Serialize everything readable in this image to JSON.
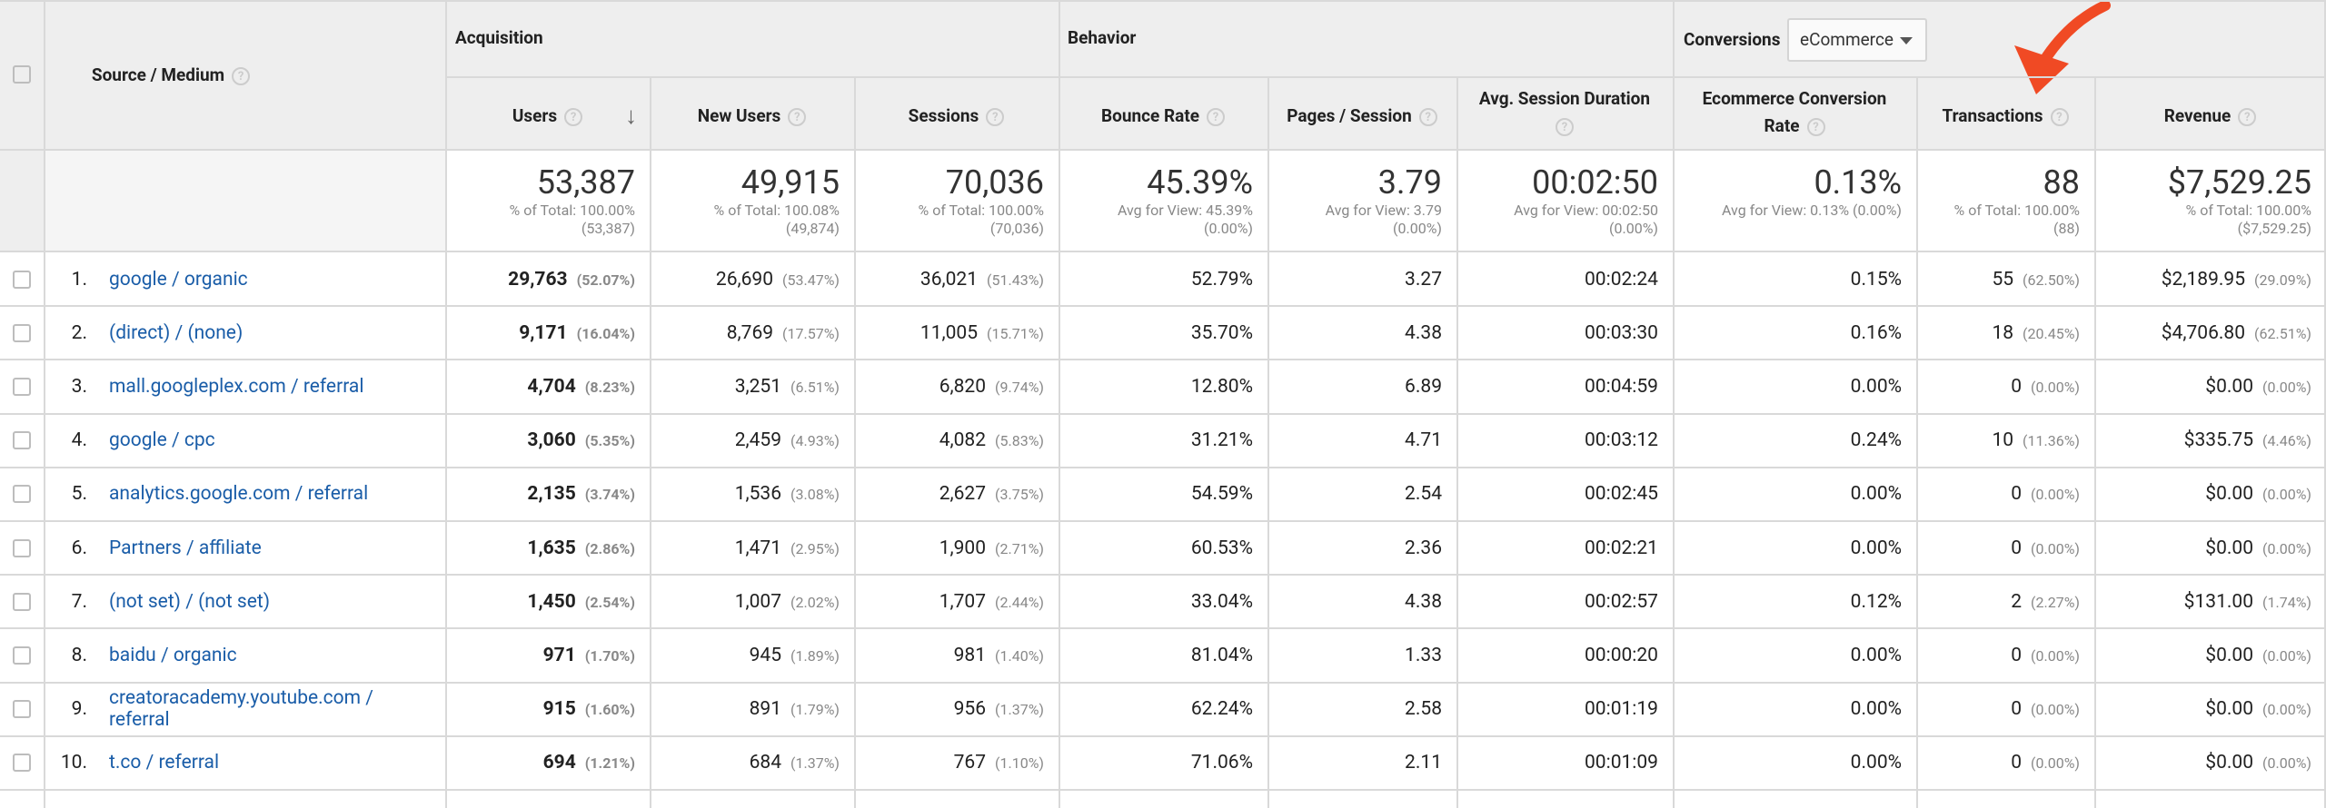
{
  "groups": {
    "acquisition": "Acquisition",
    "behavior": "Behavior",
    "conversions": "Conversions",
    "conversions_select": "eCommerce"
  },
  "columns": {
    "source_medium": "Source / Medium",
    "users": "Users",
    "new_users": "New Users",
    "sessions": "Sessions",
    "bounce_rate": "Bounce Rate",
    "pages_session": "Pages / Session",
    "avg_session_duration": "Avg. Session Duration",
    "ecom_conv_rate_line1": "Ecommerce Conversion",
    "ecom_conv_rate_line2": "Rate",
    "transactions": "Transactions",
    "revenue": "Revenue"
  },
  "totals": {
    "users": {
      "value": "53,387",
      "sub1": "% of Total: 100.00%",
      "sub2": "(53,387)"
    },
    "new_users": {
      "value": "49,915",
      "sub1": "% of Total: 100.08%",
      "sub2": "(49,874)"
    },
    "sessions": {
      "value": "70,036",
      "sub1": "% of Total: 100.00%",
      "sub2": "(70,036)"
    },
    "bounce_rate": {
      "value": "45.39%",
      "sub1": "Avg for View: 45.39%",
      "sub2": "(0.00%)"
    },
    "pages_session": {
      "value": "3.79",
      "sub1": "Avg for View: 3.79",
      "sub2": "(0.00%)"
    },
    "avg_session_duration": {
      "value": "00:02:50",
      "sub1": "Avg for View: 00:02:50",
      "sub2": "(0.00%)"
    },
    "ecom_conv_rate": {
      "value": "0.13%",
      "sub1": "Avg for View: 0.13% (0.00%)",
      "sub2": ""
    },
    "transactions": {
      "value": "88",
      "sub1": "% of Total: 100.00%",
      "sub2": "(88)"
    },
    "revenue": {
      "value": "$7,529.25",
      "sub1": "% of Total: 100.00%",
      "sub2": "($7,529.25)"
    }
  },
  "rows": [
    {
      "idx": "1.",
      "source": "google / organic",
      "users": "29,763",
      "users_pct": "(52.07%)",
      "new_users": "26,690",
      "new_users_pct": "(53.47%)",
      "sessions": "36,021",
      "sessions_pct": "(51.43%)",
      "bounce": "52.79%",
      "pages": "3.27",
      "duration": "00:02:24",
      "conv": "0.15%",
      "trans": "55",
      "trans_pct": "(62.50%)",
      "revenue": "$2,189.95",
      "revenue_pct": "(29.09%)"
    },
    {
      "idx": "2.",
      "source": "(direct) / (none)",
      "users": "9,171",
      "users_pct": "(16.04%)",
      "new_users": "8,769",
      "new_users_pct": "(17.57%)",
      "sessions": "11,005",
      "sessions_pct": "(15.71%)",
      "bounce": "35.70%",
      "pages": "4.38",
      "duration": "00:03:30",
      "conv": "0.16%",
      "trans": "18",
      "trans_pct": "(20.45%)",
      "revenue": "$4,706.80",
      "revenue_pct": "(62.51%)"
    },
    {
      "idx": "3.",
      "source": "mall.googleplex.com / referral",
      "users": "4,704",
      "users_pct": "(8.23%)",
      "new_users": "3,251",
      "new_users_pct": "(6.51%)",
      "sessions": "6,820",
      "sessions_pct": "(9.74%)",
      "bounce": "12.80%",
      "pages": "6.89",
      "duration": "00:04:59",
      "conv": "0.00%",
      "trans": "0",
      "trans_pct": "(0.00%)",
      "revenue": "$0.00",
      "revenue_pct": "(0.00%)"
    },
    {
      "idx": "4.",
      "source": "google / cpc",
      "users": "3,060",
      "users_pct": "(5.35%)",
      "new_users": "2,459",
      "new_users_pct": "(4.93%)",
      "sessions": "4,082",
      "sessions_pct": "(5.83%)",
      "bounce": "31.21%",
      "pages": "4.71",
      "duration": "00:03:12",
      "conv": "0.24%",
      "trans": "10",
      "trans_pct": "(11.36%)",
      "revenue": "$335.75",
      "revenue_pct": "(4.46%)"
    },
    {
      "idx": "5.",
      "source": "analytics.google.com / referral",
      "users": "2,135",
      "users_pct": "(3.74%)",
      "new_users": "1,536",
      "new_users_pct": "(3.08%)",
      "sessions": "2,627",
      "sessions_pct": "(3.75%)",
      "bounce": "54.59%",
      "pages": "2.54",
      "duration": "00:02:45",
      "conv": "0.00%",
      "trans": "0",
      "trans_pct": "(0.00%)",
      "revenue": "$0.00",
      "revenue_pct": "(0.00%)"
    },
    {
      "idx": "6.",
      "source": "Partners / affiliate",
      "users": "1,635",
      "users_pct": "(2.86%)",
      "new_users": "1,471",
      "new_users_pct": "(2.95%)",
      "sessions": "1,900",
      "sessions_pct": "(2.71%)",
      "bounce": "60.53%",
      "pages": "2.36",
      "duration": "00:02:21",
      "conv": "0.00%",
      "trans": "0",
      "trans_pct": "(0.00%)",
      "revenue": "$0.00",
      "revenue_pct": "(0.00%)"
    },
    {
      "idx": "7.",
      "source": "(not set) / (not set)",
      "users": "1,450",
      "users_pct": "(2.54%)",
      "new_users": "1,007",
      "new_users_pct": "(2.02%)",
      "sessions": "1,707",
      "sessions_pct": "(2.44%)",
      "bounce": "33.04%",
      "pages": "4.38",
      "duration": "00:02:57",
      "conv": "0.12%",
      "trans": "2",
      "trans_pct": "(2.27%)",
      "revenue": "$131.00",
      "revenue_pct": "(1.74%)"
    },
    {
      "idx": "8.",
      "source": "baidu / organic",
      "users": "971",
      "users_pct": "(1.70%)",
      "new_users": "945",
      "new_users_pct": "(1.89%)",
      "sessions": "981",
      "sessions_pct": "(1.40%)",
      "bounce": "81.04%",
      "pages": "1.33",
      "duration": "00:00:20",
      "conv": "0.00%",
      "trans": "0",
      "trans_pct": "(0.00%)",
      "revenue": "$0.00",
      "revenue_pct": "(0.00%)"
    },
    {
      "idx": "9.",
      "source": "creatoracademy.youtube.com /",
      "source2": "referral",
      "users": "915",
      "users_pct": "(1.60%)",
      "new_users": "891",
      "new_users_pct": "(1.79%)",
      "sessions": "956",
      "sessions_pct": "(1.37%)",
      "bounce": "62.24%",
      "pages": "2.58",
      "duration": "00:01:19",
      "conv": "0.00%",
      "trans": "0",
      "trans_pct": "(0.00%)",
      "revenue": "$0.00",
      "revenue_pct": "(0.00%)"
    },
    {
      "idx": "10.",
      "source": "t.co / referral",
      "users": "694",
      "users_pct": "(1.21%)",
      "new_users": "684",
      "new_users_pct": "(1.37%)",
      "sessions": "767",
      "sessions_pct": "(1.10%)",
      "bounce": "71.06%",
      "pages": "2.11",
      "duration": "00:01:09",
      "conv": "0.00%",
      "trans": "0",
      "trans_pct": "(0.00%)",
      "revenue": "$0.00",
      "revenue_pct": "(0.00%)"
    }
  ],
  "colors": {
    "link": "#1a5da8",
    "header_bg": "#eeeeee",
    "arrow": "#f04a24"
  }
}
